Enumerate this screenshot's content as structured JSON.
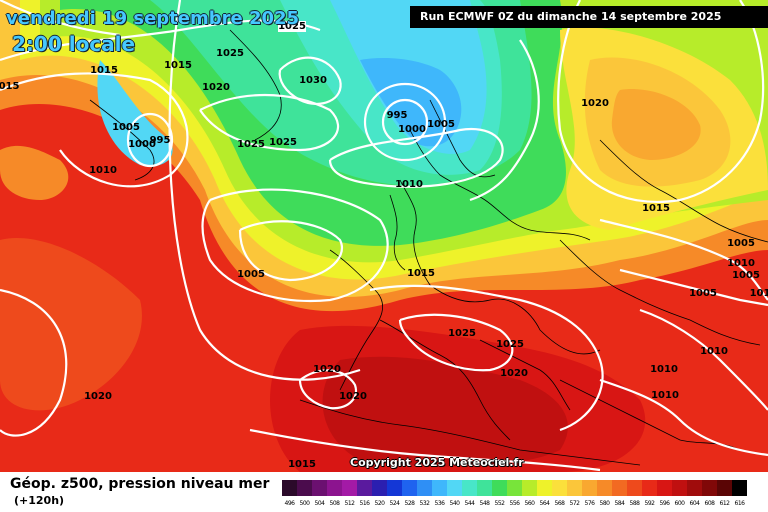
{
  "header": {
    "date_text": "vendredi 19 septembre 2025",
    "time_text": "2:00 locale",
    "run_text": "Run ECMWF 0Z du dimanche 14 septembre 2025"
  },
  "credit": "Copyright 2025 Meteociel.fr",
  "footer": {
    "title": "Géop. z500, pression niveau mer",
    "subtitle": "(+120h)"
  },
  "isobar_labels": [
    {
      "text": "1025"
    },
    {
      "text": "1015"
    },
    {
      "text": "1015"
    },
    {
      "text": "015"
    },
    {
      "text": "1025"
    },
    {
      "text": "1020"
    },
    {
      "text": "1030"
    },
    {
      "text": "1005"
    },
    {
      "text": "1000"
    },
    {
      "text": "995"
    },
    {
      "text": "1010"
    },
    {
      "text": "1025"
    },
    {
      "text": "1025"
    },
    {
      "text": "995"
    },
    {
      "text": "1000"
    },
    {
      "text": "1005"
    },
    {
      "text": "1010"
    },
    {
      "text": "1020"
    },
    {
      "text": "1015"
    },
    {
      "text": "1005"
    },
    {
      "text": "1010"
    },
    {
      "text": "1005"
    },
    {
      "text": "1005"
    },
    {
      "text": "1015"
    },
    {
      "text": "1025"
    },
    {
      "text": "1025"
    },
    {
      "text": "1020"
    },
    {
      "text": "1020"
    },
    {
      "text": "1020"
    },
    {
      "text": "1020"
    },
    {
      "text": "1005"
    },
    {
      "text": "1010"
    },
    {
      "text": "1010"
    },
    {
      "text": "1010"
    },
    {
      "text": "1015"
    },
    {
      "text": "101"
    }
  ],
  "scale": [
    {
      "label": "496",
      "color": "#2b0a2a"
    },
    {
      "label": "500",
      "color": "#4b0c4d"
    },
    {
      "label": "504",
      "color": "#6b1070"
    },
    {
      "label": "508",
      "color": "#8c148f"
    },
    {
      "label": "512",
      "color": "#a31aa6"
    },
    {
      "label": "516",
      "color": "#5a1a9e"
    },
    {
      "label": "520",
      "color": "#2b1fb0"
    },
    {
      "label": "524",
      "color": "#1437d6"
    },
    {
      "label": "528",
      "color": "#1f63ef"
    },
    {
      "label": "532",
      "color": "#2f8ff5"
    },
    {
      "label": "536",
      "color": "#3fb7fb"
    },
    {
      "label": "540",
      "color": "#52d7f5"
    },
    {
      "label": "544",
      "color": "#48e6c8"
    },
    {
      "label": "548",
      "color": "#3fe39a"
    },
    {
      "label": "552",
      "color": "#3fdc5a"
    },
    {
      "label": "556",
      "color": "#78e43a"
    },
    {
      "label": "560",
      "color": "#b7ec2a"
    },
    {
      "label": "564",
      "color": "#eef22a"
    },
    {
      "label": "568",
      "color": "#fbe03b"
    },
    {
      "label": "572",
      "color": "#fbc63a"
    },
    {
      "label": "576",
      "color": "#f9a830"
    },
    {
      "label": "580",
      "color": "#f68a28"
    },
    {
      "label": "584",
      "color": "#f26a22"
    },
    {
      "label": "588",
      "color": "#ee4a1c"
    },
    {
      "label": "592",
      "color": "#e82a18"
    },
    {
      "label": "596",
      "color": "#d81614"
    },
    {
      "label": "600",
      "color": "#c01010"
    },
    {
      "label": "604",
      "color": "#a00c0c"
    },
    {
      "label": "608",
      "color": "#800808"
    },
    {
      "label": "612",
      "color": "#5a0505"
    },
    {
      "label": "616",
      "color": "#000000"
    }
  ]
}
